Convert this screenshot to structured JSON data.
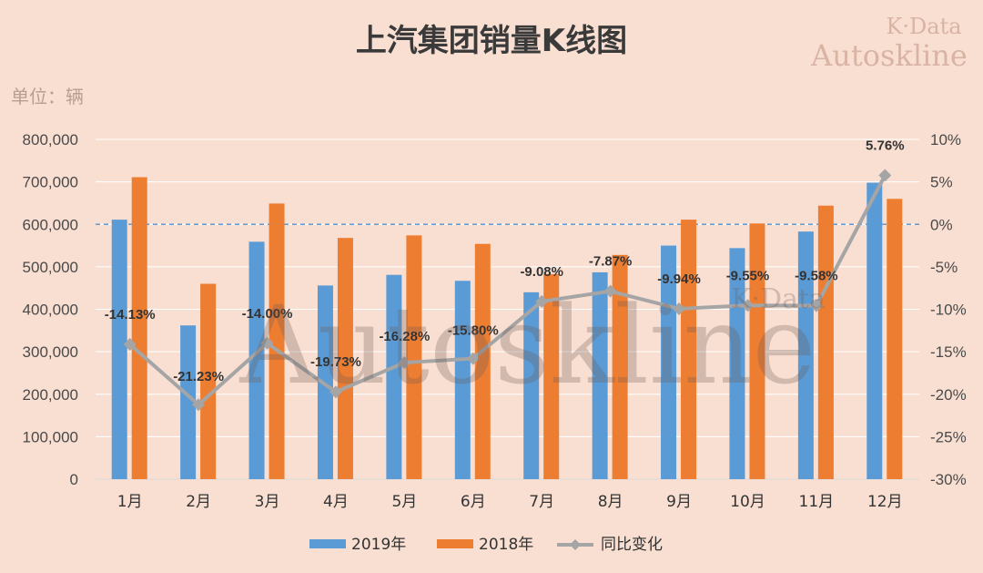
{
  "title": "上汽集团销量K线图",
  "watermark": {
    "line1": "K·Data",
    "line2": "Autoskline",
    "center_big": "Autoskline",
    "center_small": "K·Data"
  },
  "unit_label": "单位：辆",
  "colors": {
    "s2019": "#5b9bd5",
    "s2018": "#ed7d31",
    "yoy": "#a5a5a5",
    "ref": "#5b9bd5",
    "grid": "#ffffff"
  },
  "chart_data": {
    "type": "bar",
    "categories": [
      "1月",
      "2月",
      "3月",
      "4月",
      "5月",
      "6月",
      "7月",
      "8月",
      "9月",
      "10月",
      "11月",
      "12月"
    ],
    "series": [
      {
        "name": "2019年",
        "axis": "left",
        "values": [
          611000,
          362000,
          559000,
          456000,
          481000,
          467000,
          440000,
          487000,
          550000,
          544000,
          583000,
          698000
        ]
      },
      {
        "name": "2018年",
        "axis": "left",
        "values": [
          711000,
          460000,
          649000,
          568000,
          574000,
          554000,
          483000,
          528000,
          611000,
          602000,
          644000,
          660000
        ]
      },
      {
        "name": "同比变化",
        "axis": "right",
        "type": "line",
        "values": [
          -14.13,
          -21.23,
          -14.0,
          -19.73,
          -16.28,
          -15.8,
          -9.08,
          -7.87,
          -9.94,
          -9.55,
          -9.58,
          5.76
        ],
        "labels": [
          "-14.13%",
          "-21.23%",
          "-14.00%",
          "-19.73%",
          "-16.28%",
          "-15.80%",
          "-9.08%",
          "-7.87%",
          "-9.94%",
          "-9.55%",
          "-9.58%",
          "5.76%"
        ]
      }
    ],
    "left_axis": {
      "min": 0,
      "max": 800000,
      "ticks": [
        "0",
        "100,000",
        "200,000",
        "300,000",
        "400,000",
        "500,000",
        "600,000",
        "700,000",
        "800,000"
      ]
    },
    "right_axis": {
      "min": -30,
      "max": 10,
      "ticks": [
        "-30%",
        "-25%",
        "-20%",
        "-15%",
        "-10%",
        "-5%",
        "0%",
        "5%",
        "10%"
      ]
    },
    "grid": true,
    "legend_position": "bottom"
  }
}
